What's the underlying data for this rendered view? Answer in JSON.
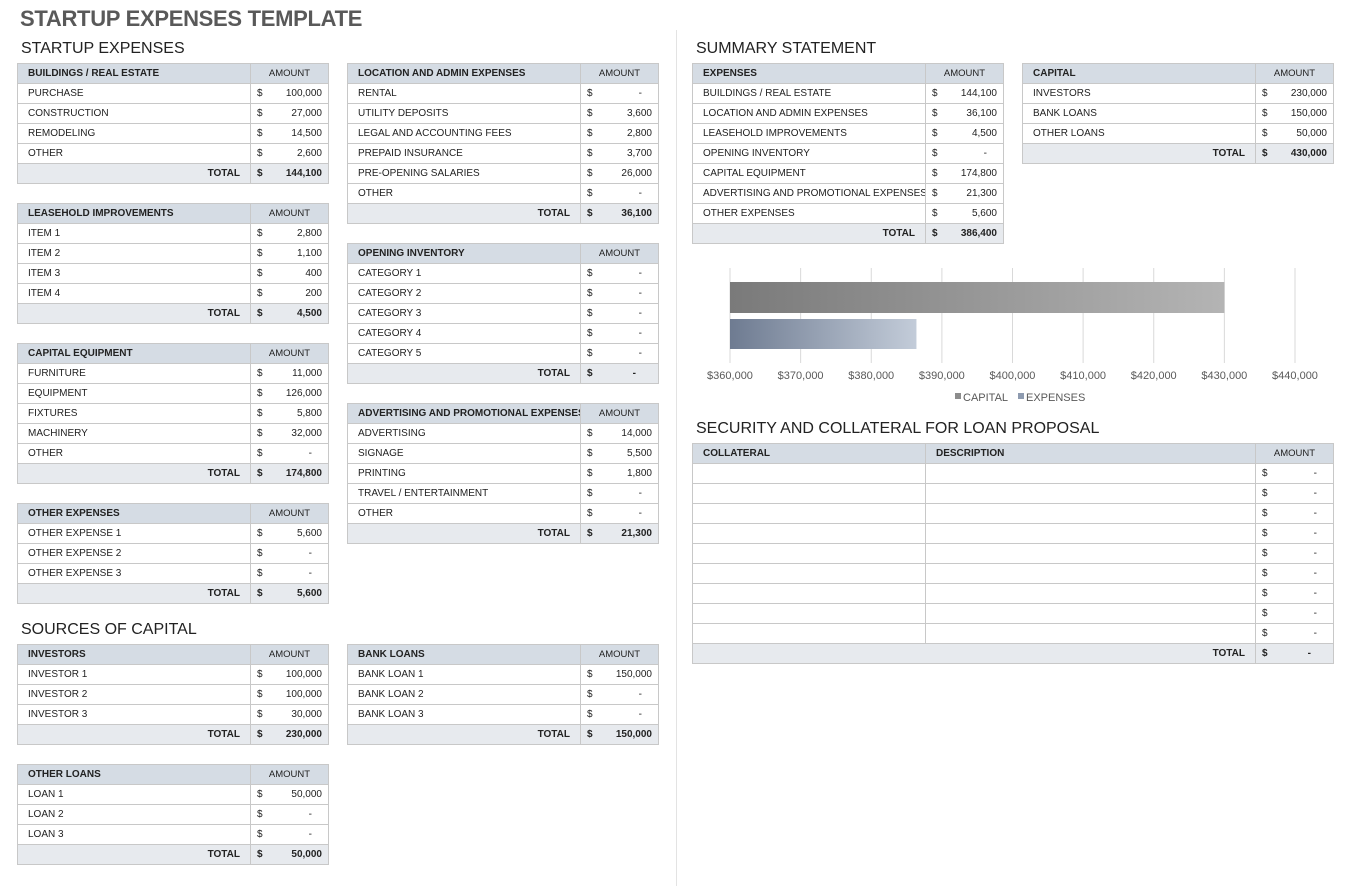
{
  "title": "STARTUP EXPENSES TEMPLATE",
  "sections": {
    "startup": "STARTUP EXPENSES",
    "sources": "SOURCES OF CAPITAL",
    "summary": "SUMMARY STATEMENT",
    "security": "SECURITY AND COLLATERAL FOR LOAN PROPOSAL"
  },
  "amount_label": "AMOUNT",
  "total_label": "TOTAL",
  "currency": "$",
  "tables": [
    {
      "id": "buildings",
      "heading": "BUILDINGS / REAL ESTATE",
      "rows": [
        [
          "PURCHASE",
          "100,000"
        ],
        [
          "CONSTRUCTION",
          "27,000"
        ],
        [
          "REMODELING",
          "14,500"
        ],
        [
          "OTHER",
          "2,600"
        ]
      ],
      "total": "144,100"
    },
    {
      "id": "leasehold",
      "heading": "LEASEHOLD IMPROVEMENTS",
      "rows": [
        [
          "ITEM 1",
          "2,800"
        ],
        [
          "ITEM 2",
          "1,100"
        ],
        [
          "ITEM 3",
          "400"
        ],
        [
          "ITEM 4",
          "200"
        ]
      ],
      "total": "4,500"
    },
    {
      "id": "capital-equipment",
      "heading": "CAPITAL EQUIPMENT",
      "rows": [
        [
          "FURNITURE",
          "11,000"
        ],
        [
          "EQUIPMENT",
          "126,000"
        ],
        [
          "FIXTURES",
          "5,800"
        ],
        [
          "MACHINERY",
          "32,000"
        ],
        [
          "OTHER",
          "-"
        ]
      ],
      "total": "174,800"
    },
    {
      "id": "other-expenses",
      "heading": "OTHER EXPENSES",
      "rows": [
        [
          "OTHER EXPENSE 1",
          "5,600"
        ],
        [
          "OTHER EXPENSE 2",
          "-"
        ],
        [
          "OTHER EXPENSE 3",
          "-"
        ]
      ],
      "total": "5,600"
    },
    {
      "id": "investors",
      "heading": "INVESTORS",
      "rows": [
        [
          "INVESTOR 1",
          "100,000"
        ],
        [
          "INVESTOR 2",
          "100,000"
        ],
        [
          "INVESTOR 3",
          "30,000"
        ]
      ],
      "total": "230,000"
    },
    {
      "id": "other-loans",
      "heading": "OTHER LOANS",
      "rows": [
        [
          "LOAN 1",
          "50,000"
        ],
        [
          "LOAN 2",
          "-"
        ],
        [
          "LOAN 3",
          "-"
        ]
      ],
      "total": "50,000"
    },
    {
      "id": "location-admin",
      "heading": "LOCATION AND ADMIN EXPENSES",
      "rows": [
        [
          "RENTAL",
          "-"
        ],
        [
          "UTILITY DEPOSITS",
          "3,600"
        ],
        [
          "LEGAL AND ACCOUNTING FEES",
          "2,800"
        ],
        [
          "PREPAID INSURANCE",
          "3,700"
        ],
        [
          "PRE-OPENING SALARIES",
          "26,000"
        ],
        [
          "OTHER",
          "-"
        ]
      ],
      "total": "36,100"
    },
    {
      "id": "opening-inventory",
      "heading": "OPENING INVENTORY",
      "rows": [
        [
          "CATEGORY 1",
          "-"
        ],
        [
          "CATEGORY 2",
          "-"
        ],
        [
          "CATEGORY 3",
          "-"
        ],
        [
          "CATEGORY 4",
          "-"
        ],
        [
          "CATEGORY 5",
          "-"
        ]
      ],
      "total": "-"
    },
    {
      "id": "advertising",
      "heading": "ADVERTISING AND PROMOTIONAL EXPENSES",
      "rows": [
        [
          "ADVERTISING",
          "14,000"
        ],
        [
          "SIGNAGE",
          "5,500"
        ],
        [
          "PRINTING",
          "1,800"
        ],
        [
          "TRAVEL / ENTERTAINMENT",
          "-"
        ],
        [
          "OTHER",
          "-"
        ]
      ],
      "total": "21,300"
    },
    {
      "id": "bank-loans",
      "heading": "BANK LOANS",
      "rows": [
        [
          "BANK LOAN 1",
          "150,000"
        ],
        [
          "BANK LOAN 2",
          "-"
        ],
        [
          "BANK LOAN 3",
          "-"
        ]
      ],
      "total": "150,000"
    },
    {
      "id": "summary-expenses",
      "heading": "EXPENSES",
      "rows": [
        [
          "BUILDINGS / REAL ESTATE",
          "144,100"
        ],
        [
          "LOCATION AND ADMIN EXPENSES",
          "36,100"
        ],
        [
          "LEASEHOLD IMPROVEMENTS",
          "4,500"
        ],
        [
          "OPENING INVENTORY",
          "-"
        ],
        [
          "CAPITAL EQUIPMENT",
          "174,800"
        ],
        [
          "ADVERTISING AND PROMOTIONAL EXPENSES",
          "21,300"
        ],
        [
          "OTHER EXPENSES",
          "5,600"
        ]
      ],
      "total": "386,400"
    },
    {
      "id": "summary-capital",
      "heading": "CAPITAL",
      "rows": [
        [
          "INVESTORS",
          "230,000"
        ],
        [
          "BANK LOANS",
          "150,000"
        ],
        [
          "OTHER LOANS",
          "50,000"
        ]
      ],
      "total": "430,000"
    }
  ],
  "security": {
    "headers": [
      "COLLATERAL",
      "DESCRIPTION",
      "AMOUNT"
    ],
    "rows": [
      "-",
      "-",
      "-",
      "-",
      "-",
      "-",
      "-",
      "-",
      "-"
    ],
    "total": "-"
  },
  "chart_data": {
    "type": "bar",
    "orientation": "horizontal",
    "series": [
      {
        "name": "CAPITAL",
        "values": [
          430000
        ],
        "color": "#8c8c8c"
      },
      {
        "name": "EXPENSES",
        "values": [
          386400
        ],
        "color": "#8e9bb0"
      }
    ],
    "xlim": [
      360000,
      440000
    ],
    "ticks": [
      "$360,000",
      "$370,000",
      "$380,000",
      "$390,000",
      "$400,000",
      "$410,000",
      "$420,000",
      "$430,000",
      "$440,000"
    ],
    "grid": true,
    "legend": "bottom"
  }
}
